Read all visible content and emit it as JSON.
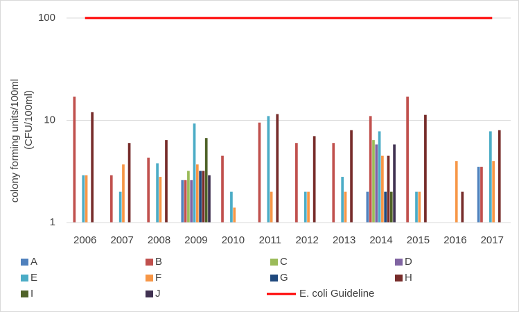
{
  "chart_data": {
    "type": "bar",
    "ylabel": [
      "colony forming units/100ml",
      "(CFU/100ml)"
    ],
    "categories": [
      "2006",
      "2007",
      "2008",
      "2009",
      "2010",
      "2011",
      "2012",
      "2013",
      "2014",
      "2015",
      "2016",
      "2017"
    ],
    "ylim": [
      1,
      100
    ],
    "yticks": [
      1,
      10,
      100
    ],
    "log_scale": true,
    "grid": true,
    "legend": "bottom",
    "series": [
      {
        "name": "A",
        "color": "#4f81bd",
        "values": [
          null,
          null,
          null,
          2.6,
          null,
          null,
          null,
          null,
          2.0,
          null,
          null,
          3.5
        ]
      },
      {
        "name": "B",
        "color": "#c0504d",
        "values": [
          17,
          2.9,
          4.3,
          2.6,
          4.5,
          9.5,
          6.0,
          6.0,
          11,
          17,
          null,
          3.5
        ]
      },
      {
        "name": "C",
        "color": "#9bbb59",
        "values": [
          null,
          null,
          null,
          3.2,
          null,
          null,
          null,
          null,
          6.4,
          null,
          null,
          null
        ]
      },
      {
        "name": "D",
        "color": "#8064a2",
        "values": [
          null,
          null,
          null,
          2.6,
          null,
          null,
          null,
          null,
          5.8,
          null,
          null,
          null
        ]
      },
      {
        "name": "E",
        "color": "#4bacc6",
        "values": [
          2.9,
          2.0,
          3.8,
          9.3,
          2.0,
          11,
          2.0,
          2.8,
          7.8,
          2.0,
          null,
          7.8
        ]
      },
      {
        "name": "F",
        "color": "#f79646",
        "values": [
          2.9,
          3.7,
          2.8,
          3.7,
          1.4,
          2.0,
          2.0,
          2.0,
          4.5,
          2.0,
          4.0,
          4.0
        ]
      },
      {
        "name": "G",
        "color": "#1f497d",
        "values": [
          null,
          null,
          null,
          3.2,
          null,
          null,
          null,
          null,
          2.0,
          null,
          null,
          null
        ]
      },
      {
        "name": "H",
        "color": "#772c2a",
        "values": [
          12,
          6.0,
          6.4,
          3.2,
          null,
          11.5,
          7.0,
          8.0,
          4.5,
          11.3,
          2.0,
          8.0
        ]
      },
      {
        "name": "I",
        "color": "#4f6228",
        "values": [
          null,
          null,
          null,
          6.7,
          null,
          null,
          null,
          null,
          2.0,
          null,
          null,
          null
        ]
      },
      {
        "name": "J",
        "color": "#403151",
        "values": [
          null,
          null,
          null,
          2.9,
          null,
          null,
          null,
          null,
          5.8,
          null,
          null,
          null
        ]
      },
      {
        "name": "E. coli Guideline",
        "type": "line",
        "color": "#ff0000",
        "values": [
          100,
          100,
          100,
          100,
          100,
          100,
          100,
          100,
          100,
          100,
          100,
          100
        ]
      }
    ]
  }
}
